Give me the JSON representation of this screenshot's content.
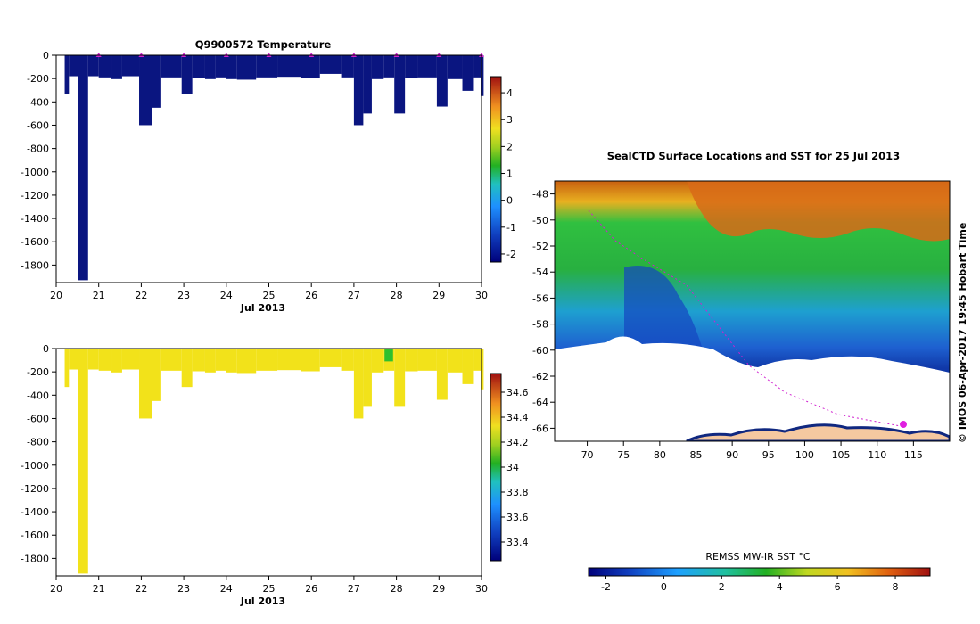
{
  "chart_data": [
    {
      "type": "bar",
      "title": "Q9900572  Temperature",
      "xlabel": "Jul 2013",
      "ylabel": "",
      "xlim": [
        20,
        30
      ],
      "ylim": [
        -1950,
        0
      ],
      "xticks": [
        "20",
        "21",
        "22",
        "23",
        "24",
        "25",
        "26",
        "27",
        "28",
        "29",
        "30"
      ],
      "yticks": [
        "0",
        "-200",
        "-400",
        "-600",
        "-800",
        "-1000",
        "-1200",
        "-1400",
        "-1600",
        "-1800"
      ],
      "profiles": [
        {
          "x0": 20.2,
          "x1": 20.3,
          "depth": -330
        },
        {
          "x0": 20.3,
          "x1": 20.52,
          "depth": -180
        },
        {
          "x0": 20.52,
          "x1": 20.75,
          "depth": -1930
        },
        {
          "x0": 20.75,
          "x1": 21.0,
          "depth": -180
        },
        {
          "x0": 21.0,
          "x1": 21.3,
          "depth": -190
        },
        {
          "x0": 21.3,
          "x1": 21.55,
          "depth": -205
        },
        {
          "x0": 21.55,
          "x1": 21.95,
          "depth": -180
        },
        {
          "x0": 21.95,
          "x1": 22.25,
          "depth": -600
        },
        {
          "x0": 22.25,
          "x1": 22.45,
          "depth": -450
        },
        {
          "x0": 22.45,
          "x1": 22.95,
          "depth": -190
        },
        {
          "x0": 22.95,
          "x1": 23.2,
          "depth": -330
        },
        {
          "x0": 23.2,
          "x1": 23.5,
          "depth": -195
        },
        {
          "x0": 23.5,
          "x1": 23.75,
          "depth": -205
        },
        {
          "x0": 23.75,
          "x1": 24.0,
          "depth": -190
        },
        {
          "x0": 24.0,
          "x1": 24.25,
          "depth": -205
        },
        {
          "x0": 24.25,
          "x1": 24.7,
          "depth": -210
        },
        {
          "x0": 24.7,
          "x1": 25.2,
          "depth": -190
        },
        {
          "x0": 25.2,
          "x1": 25.75,
          "depth": -185
        },
        {
          "x0": 25.75,
          "x1": 26.2,
          "depth": -195
        },
        {
          "x0": 26.2,
          "x1": 26.7,
          "depth": -160
        },
        {
          "x0": 26.7,
          "x1": 27.0,
          "depth": -190
        },
        {
          "x0": 27.0,
          "x1": 27.22,
          "depth": -600
        },
        {
          "x0": 27.22,
          "x1": 27.42,
          "depth": -500
        },
        {
          "x0": 27.42,
          "x1": 27.7,
          "depth": -205
        },
        {
          "x0": 27.7,
          "x1": 27.95,
          "depth": -190
        },
        {
          "x0": 27.95,
          "x1": 28.2,
          "depth": -500
        },
        {
          "x0": 28.2,
          "x1": 28.5,
          "depth": -195
        },
        {
          "x0": 28.5,
          "x1": 28.95,
          "depth": -190
        },
        {
          "x0": 28.95,
          "x1": 29.2,
          "depth": -440
        },
        {
          "x0": 29.2,
          "x1": 29.55,
          "depth": -205
        },
        {
          "x0": 29.55,
          "x1": 29.8,
          "depth": -305
        },
        {
          "x0": 29.8,
          "x1": 29.98,
          "depth": -190
        },
        {
          "x0": 29.98,
          "x1": 30.05,
          "depth": -350
        }
      ],
      "surface_markers_x": [
        21,
        22,
        23,
        24,
        25,
        26,
        27,
        28,
        29,
        30
      ],
      "colorbar": {
        "min": -2.3,
        "max": 4.6,
        "ticks": [
          "-2",
          "-1",
          "0",
          "1",
          "2",
          "3",
          "4"
        ],
        "tick_values": [
          -2,
          -1,
          0,
          1,
          2,
          3,
          4
        ]
      },
      "fill_color": "#0a1580"
    },
    {
      "type": "bar",
      "title": "",
      "xlabel": "Jul 2013",
      "ylabel": "",
      "xlim": [
        20,
        30
      ],
      "ylim": [
        -1950,
        0
      ],
      "xticks": [
        "20",
        "21",
        "22",
        "23",
        "24",
        "25",
        "26",
        "27",
        "28",
        "29",
        "30"
      ],
      "yticks": [
        "0",
        "-200",
        "-400",
        "-600",
        "-800",
        "-1000",
        "-1200",
        "-1400",
        "-1600",
        "-1800"
      ],
      "colorbar": {
        "min": 33.25,
        "max": 34.75,
        "ticks": [
          "33.4",
          "33.6",
          "33.8",
          "34",
          "34.2",
          "34.4",
          "34.6"
        ],
        "tick_values": [
          33.4,
          33.6,
          33.8,
          34,
          34.2,
          34.4,
          34.6
        ]
      },
      "fill_color": "#f2e21a",
      "anomaly": {
        "x0": 27.72,
        "x1": 27.92,
        "depth": -110,
        "color": "#2ec02e"
      }
    },
    {
      "type": "heatmap",
      "title": "SealCTD Surface Locations and SST for 25 Jul 2013",
      "xlabel": "",
      "ylabel": "",
      "xlim": [
        65.5,
        120
      ],
      "ylim": [
        -67,
        -47
      ],
      "xticks": [
        "70",
        "75",
        "80",
        "85",
        "90",
        "95",
        "100",
        "105",
        "110",
        "115"
      ],
      "yticks": [
        "-48",
        "-50",
        "-52",
        "-54",
        "-56",
        "-58",
        "-60",
        "-62",
        "-64",
        "-66"
      ],
      "side_label": "© IMOS 06-Apr-2017 19:45 Hobart Time",
      "colorbar": {
        "label": "REMSS MW-IR SST °C",
        "min": -2.6,
        "max": 9.2,
        "ticks": [
          "-2",
          "0",
          "2",
          "4",
          "6",
          "8"
        ],
        "tick_values": [
          -2,
          0,
          2,
          4,
          6,
          8
        ]
      }
    }
  ]
}
